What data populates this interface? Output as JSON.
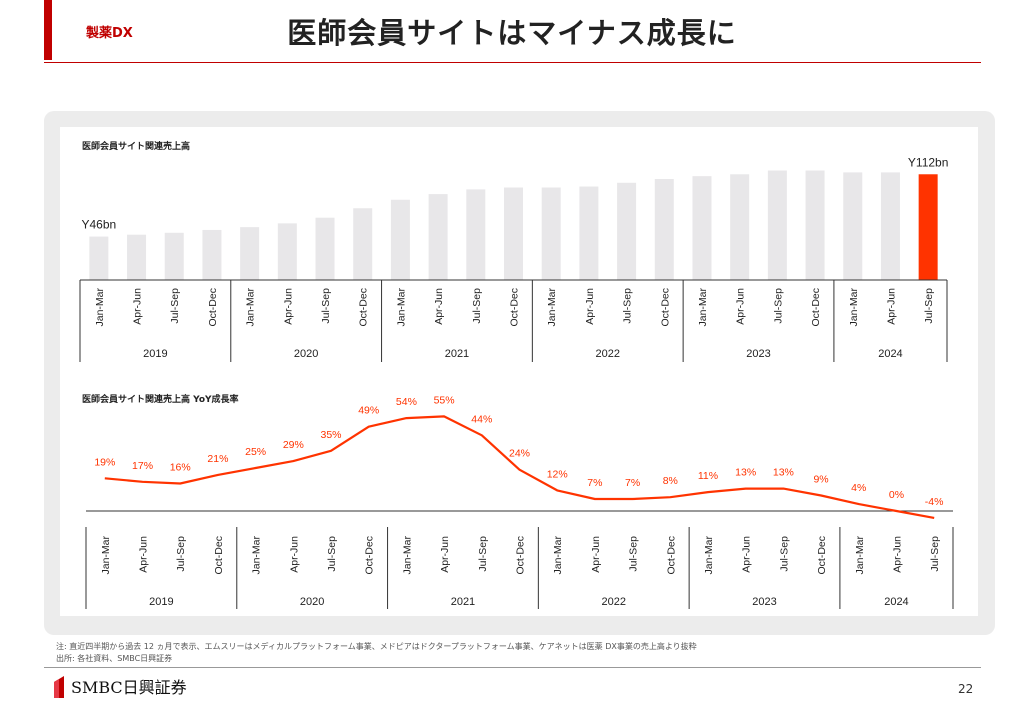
{
  "header": {
    "tag": "製薬DX",
    "title": "医師会員サイトはマイナス成長に"
  },
  "chart_data": [
    {
      "type": "bar",
      "title": "医師会員サイト関連売上高",
      "categories": [
        "Jan-Mar",
        "Apr-Jun",
        "Jul-Sep",
        "Oct-Dec",
        "Jan-Mar",
        "Apr-Jun",
        "Jul-Sep",
        "Oct-Dec",
        "Jan-Mar",
        "Apr-Jun",
        "Jul-Sep",
        "Oct-Dec",
        "Jan-Mar",
        "Apr-Jun",
        "Jul-Sep",
        "Oct-Dec",
        "Jan-Mar",
        "Apr-Jun",
        "Jul-Sep",
        "Oct-Dec",
        "Jan-Mar",
        "Apr-Jun",
        "Jul-Sep"
      ],
      "groups": [
        {
          "label": "2019",
          "count": 4
        },
        {
          "label": "2020",
          "count": 4
        },
        {
          "label": "2021",
          "count": 4
        },
        {
          "label": "2022",
          "count": 4
        },
        {
          "label": "2023",
          "count": 4
        },
        {
          "label": "2024",
          "count": 3
        }
      ],
      "values": [
        46,
        48,
        50,
        53,
        56,
        60,
        66,
        76,
        85,
        91,
        96,
        98,
        98,
        99,
        103,
        107,
        110,
        112,
        116,
        116,
        114,
        114,
        112
      ],
      "ylim": [
        0,
        125
      ],
      "highlight_index": 22,
      "annotations": [
        {
          "index": 0,
          "text": "Y46bn"
        },
        {
          "index": 22,
          "text": "Y112bn"
        }
      ],
      "colors": {
        "bar": "#e8e7e9",
        "highlight": "#ff3300"
      }
    },
    {
      "type": "line",
      "title": "医師会員サイト関連売上高 YoY成長率",
      "categories": [
        "Jan-Mar",
        "Apr-Jun",
        "Jul-Sep",
        "Oct-Dec",
        "Jan-Mar",
        "Apr-Jun",
        "Jul-Sep",
        "Oct-Dec",
        "Jan-Mar",
        "Apr-Jun",
        "Jul-Sep",
        "Oct-Dec",
        "Jan-Mar",
        "Apr-Jun",
        "Jul-Sep",
        "Oct-Dec",
        "Jan-Mar",
        "Apr-Jun",
        "Jul-Sep",
        "Oct-Dec",
        "Jan-Mar",
        "Apr-Jun",
        "Jul-Sep"
      ],
      "groups": [
        {
          "label": "2019",
          "count": 4
        },
        {
          "label": "2020",
          "count": 4
        },
        {
          "label": "2021",
          "count": 4
        },
        {
          "label": "2022",
          "count": 4
        },
        {
          "label": "2023",
          "count": 4
        },
        {
          "label": "2024",
          "count": 3
        }
      ],
      "values": [
        19,
        17,
        16,
        21,
        25,
        29,
        35,
        49,
        54,
        55,
        44,
        24,
        12,
        7,
        7,
        8,
        11,
        13,
        13,
        9,
        4,
        0,
        -4
      ],
      "data_labels": [
        "19%",
        "17%",
        "16%",
        "21%",
        "25%",
        "29%",
        "35%",
        "49%",
        "54%",
        "55%",
        "44%",
        "24%",
        "12%",
        "7%",
        "7%",
        "8%",
        "11%",
        "13%",
        "13%",
        "9%",
        "4%",
        "0%",
        "-4%"
      ],
      "colors": {
        "line": "#ff3300"
      }
    }
  ],
  "footnotes": {
    "note": "注: 直近四半期から過去 12 ヵ月で表示、エムスリーはメディカルプラットフォーム事業、メドピアはドクタープラットフォーム事業、ケアネットは医薬 DX事業の売上高より抜粋",
    "source": "出所: 各社資料、SMBC日興証券"
  },
  "footer": {
    "logo_text": "SMBC日興証券",
    "page_number": "22"
  }
}
